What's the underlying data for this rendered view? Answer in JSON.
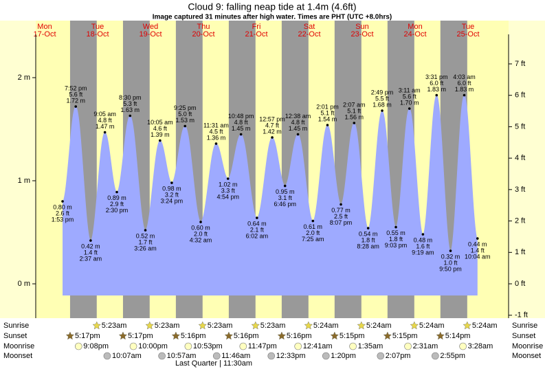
{
  "chart_data": {
    "type": "tide",
    "title": "Cloud 9: falling  neap tide at 1.4m (4.6ft)",
    "subtitle": "Image captured 31 minutes after high water. Times are PHT (UTC +8.0hrs)",
    "ylim": [
      -0.333,
      2.42
    ],
    "yticks": [
      {
        "value": 0,
        "label": "0 m"
      },
      {
        "value": 1,
        "label": "1 m"
      },
      {
        "value": 2,
        "label": "2 m"
      }
    ],
    "y2lim": [
      -1.093,
      7.94
    ],
    "y2ticks": [
      {
        "value": -1,
        "label": "-1 ft"
      },
      {
        "value": 0,
        "label": "0 ft"
      },
      {
        "value": 1,
        "label": "1 ft"
      },
      {
        "value": 2,
        "label": "2 ft"
      },
      {
        "value": 3,
        "label": "3 ft"
      },
      {
        "value": 4,
        "label": "4 ft"
      },
      {
        "value": 5,
        "label": "5 ft"
      },
      {
        "value": 6,
        "label": "6 ft"
      },
      {
        "value": 7,
        "label": "7 ft"
      }
    ],
    "color": "#9eaaff",
    "rows": [
      "Sunrise",
      "Sunset",
      "Moonrise",
      "Moonset"
    ],
    "footer": "Last Quarter | 11:30am",
    "days": [
      {
        "name": "Mon",
        "date": "17-Oct",
        "sunset": "5:17pm",
        "moonrise": "9:08pm",
        "tides": [
          {
            "time": "1:53 pm",
            "value": 0.8,
            "value_label": "0.80 m",
            "ft_label": "2.6 ft"
          },
          {
            "time": "7:52 pm",
            "value": 1.72,
            "value_label": "1.72 m",
            "ft_label": "5.6 ft"
          }
        ]
      },
      {
        "name": "Tue",
        "date": "18-Oct",
        "sunrise": "5:23am",
        "sunset": "5:17pm",
        "moonrise": "10:00pm",
        "moonset": "10:07am",
        "tides": [
          {
            "time": "2:37 am",
            "value": 0.42,
            "value_label": "0.42 m",
            "ft_label": "1.4 ft"
          },
          {
            "time": "9:05 am",
            "value": 1.47,
            "value_label": "1.47 m",
            "ft_label": "4.8 ft"
          },
          {
            "time": "2:30 pm",
            "value": 0.89,
            "value_label": "0.89 m",
            "ft_label": "2.9 ft"
          },
          {
            "time": "8:30 pm",
            "value": 1.63,
            "value_label": "1.63 m",
            "ft_label": "5.3 ft"
          }
        ]
      },
      {
        "name": "Wed",
        "date": "19-Oct",
        "sunrise": "5:23am",
        "sunset": "5:16pm",
        "moonrise": "10:53pm",
        "moonset": "10:57am",
        "tides": [
          {
            "time": "3:26 am",
            "value": 0.52,
            "value_label": "0.52 m",
            "ft_label": "1.7 ft"
          },
          {
            "time": "10:05 am",
            "value": 1.39,
            "value_label": "1.39 m",
            "ft_label": "4.6 ft"
          },
          {
            "time": "3:24 pm",
            "value": 0.98,
            "value_label": "0.98 m",
            "ft_label": "3.2 ft"
          },
          {
            "time": "9:25 pm",
            "value": 1.53,
            "value_label": "1.53 m",
            "ft_label": "5.0 ft"
          }
        ]
      },
      {
        "name": "Thu",
        "date": "20-Oct",
        "sunrise": "5:23am",
        "sunset": "5:16pm",
        "moonrise": "11:47pm",
        "moonset": "11:46am",
        "tides": [
          {
            "time": "4:32 am",
            "value": 0.6,
            "value_label": "0.60 m",
            "ft_label": "2.0 ft"
          },
          {
            "time": "11:31 am",
            "value": 1.36,
            "value_label": "1.36 m",
            "ft_label": "4.5 ft"
          },
          {
            "time": "4:54 pm",
            "value": 1.02,
            "value_label": "1.02 m",
            "ft_label": "3.3 ft"
          },
          {
            "time": "10:48 pm",
            "value": 1.45,
            "value_label": "1.45 m",
            "ft_label": "4.8 ft"
          }
        ]
      },
      {
        "name": "Fri",
        "date": "21-Oct",
        "sunrise": "5:23am",
        "sunset": "5:16pm",
        "moonset": "12:33pm",
        "tides": [
          {
            "time": "6:02 am",
            "value": 0.64,
            "value_label": "0.64 m",
            "ft_label": "2.1 ft"
          },
          {
            "time": "12:57 pm",
            "value": 1.42,
            "value_label": "1.42 m",
            "ft_label": "4.7 ft"
          },
          {
            "time": "6:46 pm",
            "value": 0.95,
            "value_label": "0.95 m",
            "ft_label": "3.1 ft"
          }
        ]
      },
      {
        "name": "Sat",
        "date": "22-Oct",
        "sunrise": "5:24am",
        "sunset": "5:15pm",
        "moonrise": "12:41am",
        "moonset": "1:20pm",
        "tides": [
          {
            "time": "12:38 am",
            "value": 1.45,
            "value_label": "1.45 m",
            "ft_label": "4.8 ft"
          },
          {
            "time": "7:25 am",
            "value": 0.61,
            "value_label": "0.61 m",
            "ft_label": "2.0 ft"
          },
          {
            "time": "2:01 pm",
            "value": 1.54,
            "value_label": "1.54 m",
            "ft_label": "5.1 ft"
          },
          {
            "time": "8:07 pm",
            "value": 0.77,
            "value_label": "0.77 m",
            "ft_label": "2.5 ft"
          }
        ]
      },
      {
        "name": "Sun",
        "date": "23-Oct",
        "sunrise": "5:24am",
        "sunset": "5:15pm",
        "moonrise": "1:35am",
        "moonset": "2:07pm",
        "tides": [
          {
            "time": "2:07 am",
            "value": 1.56,
            "value_label": "1.56 m",
            "ft_label": "5.1 ft"
          },
          {
            "time": "8:28 am",
            "value": 0.54,
            "value_label": "0.54 m",
            "ft_label": "1.8 ft"
          },
          {
            "time": "2:49 pm",
            "value": 1.68,
            "value_label": "1.68 m",
            "ft_label": "5.5 ft"
          },
          {
            "time": "9:03 pm",
            "value": 0.55,
            "value_label": "0.55 m",
            "ft_label": "1.8 ft"
          }
        ]
      },
      {
        "name": "Mon",
        "date": "24-Oct",
        "sunrise": "5:24am",
        "sunset": "5:14pm",
        "moonrise": "2:31am",
        "moonset": "2:55pm",
        "tides": [
          {
            "time": "3:11 am",
            "value": 1.7,
            "value_label": "1.70 m",
            "ft_label": "5.6 ft"
          },
          {
            "time": "9:19 am",
            "value": 0.48,
            "value_label": "0.48 m",
            "ft_label": "1.6 ft"
          },
          {
            "time": "3:31 pm",
            "value": 1.83,
            "value_label": "1.83 m",
            "ft_label": "6.0 ft"
          },
          {
            "time": "9:50 pm",
            "value": 0.32,
            "value_label": "0.32 m",
            "ft_label": "1.0 ft"
          }
        ]
      },
      {
        "name": "Tue",
        "date": "25-Oct",
        "sunrise": "5:24am",
        "moonrise": "3:28am",
        "tides": [
          {
            "time": "4:03 am",
            "value": 1.83,
            "value_label": "1.83 m",
            "ft_label": "6.0 ft"
          },
          {
            "time": "10:04 am",
            "value": 0.44,
            "value_label": "0.44 m",
            "ft_label": "1.4 ft"
          }
        ]
      }
    ]
  }
}
